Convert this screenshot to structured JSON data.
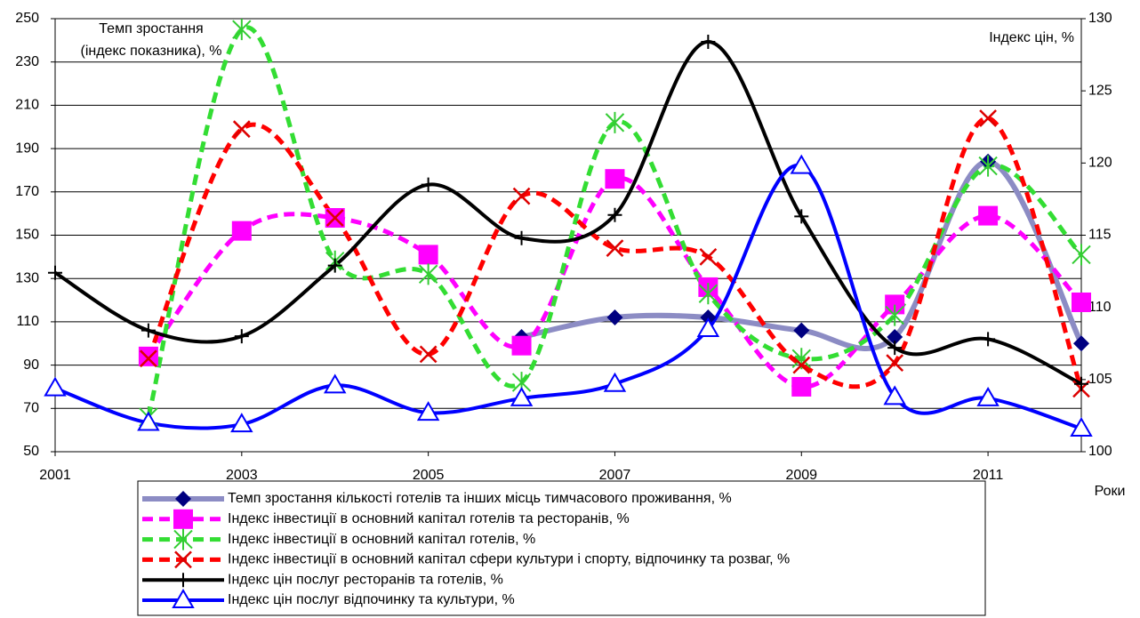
{
  "chart_data": {
    "type": "line",
    "y_label_lines": [
      "Темп зростання",
      "(індекс показника), %"
    ],
    "y2_label": "Індекс цін, %",
    "x_label": "Роки",
    "x": [
      2001,
      2002,
      2003,
      2004,
      2005,
      2006,
      2007,
      2008,
      2009,
      2010,
      2011,
      2012
    ],
    "xlim": [
      2001,
      2012
    ],
    "xticks": [
      2001,
      2003,
      2005,
      2007,
      2009,
      2011
    ],
    "ylim": [
      50,
      250
    ],
    "yticks": [
      50,
      70,
      90,
      110,
      130,
      150,
      170,
      190,
      210,
      230,
      250
    ],
    "y2lim": [
      100,
      130
    ],
    "y2ticks": [
      100,
      105,
      110,
      115,
      120,
      125,
      130
    ],
    "grid": true,
    "legend": "bottom",
    "series": [
      {
        "name": "Темп зростання кількості готелів та інших місць тимчасового проживання, %",
        "color": "#8c8cc4",
        "marker_color": "#000080",
        "marker": "diamond",
        "dash": false,
        "width": 6,
        "values": [
          null,
          null,
          null,
          null,
          null,
          103,
          112,
          112,
          106,
          103,
          184,
          100
        ]
      },
      {
        "name": "Індекс інвестиції в основний капітал готелів та ресторанів, %",
        "color": "#ff00ff",
        "marker_color": "#ff00ff",
        "marker": "square",
        "dash": true,
        "width": 5,
        "values": [
          null,
          94,
          152,
          158,
          141,
          99,
          176,
          126,
          80,
          118,
          159,
          119
        ]
      },
      {
        "name": "Індекс інвестиції в основний капітал готелів, %",
        "color": "#33dd33",
        "marker_color": "#33cc33",
        "marker": "star",
        "dash": true,
        "width": 5,
        "values": [
          null,
          66,
          245,
          138,
          132,
          82,
          202,
          123,
          93,
          113,
          182,
          141
        ]
      },
      {
        "name": "Індекс інвестиції в основний капітал сфери культури і спорту, відпочинку та розваг, %",
        "color": "#ff0000",
        "marker_color": "#dd0000",
        "marker": "cross",
        "dash": true,
        "width": 5,
        "values": [
          null,
          93,
          199,
          158,
          95,
          168,
          144,
          140,
          90,
          91,
          204,
          79
        ]
      },
      {
        "name": "Індекс цін послуг ресторанів та готелів, %",
        "color": "#000000",
        "marker_color": "#000000",
        "marker": "plus",
        "dash": false,
        "width": 4,
        "axis": "y2",
        "values": [
          112.4,
          108.4,
          108.0,
          112.9,
          118.5,
          114.8,
          116.4,
          128.4,
          116.3,
          107.2,
          107.8,
          104.7
        ]
      },
      {
        "name": "Індекс цін послуг відпочинку та культури, %",
        "color": "#0000ff",
        "marker_color": "#0000ff",
        "marker": "triangle",
        "dash": false,
        "width": 4,
        "axis": "y2",
        "values": [
          104.4,
          102.0,
          101.9,
          104.6,
          102.7,
          103.7,
          104.7,
          108.5,
          119.8,
          103.8,
          103.7,
          101.6
        ]
      }
    ]
  }
}
